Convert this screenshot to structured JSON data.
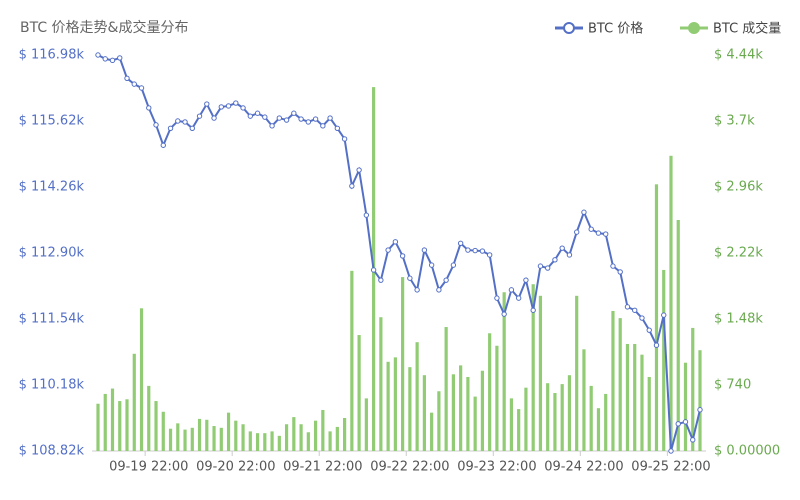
{
  "chart_data": {
    "type": "combo",
    "title": "BTC 价格走势&成交量分布",
    "legend": "top-right",
    "categories": [
      null,
      null,
      null,
      null,
      null,
      null,
      null,
      "09-19 22:00",
      null,
      null,
      null,
      null,
      null,
      null,
      null,
      null,
      null,
      null,
      null,
      "09-20 22:00",
      null,
      null,
      null,
      null,
      null,
      null,
      null,
      null,
      null,
      null,
      null,
      "09-21 22:00",
      null,
      null,
      null,
      null,
      null,
      null,
      null,
      null,
      null,
      null,
      null,
      "09-22 22:00",
      null,
      null,
      null,
      null,
      null,
      null,
      null,
      null,
      null,
      null,
      null,
      "09-23 22:00",
      null,
      null,
      null,
      null,
      null,
      null,
      null,
      null,
      null,
      null,
      null,
      "09-24 22:00",
      null,
      null,
      null,
      null,
      null,
      null,
      null,
      null,
      null,
      null,
      null,
      "09-25 22:00",
      null,
      null,
      null,
      null
    ],
    "ylim": [
      108820,
      116980
    ],
    "yticks": [
      {
        "value": 108820,
        "label": "$ 108.82k"
      },
      {
        "value": 110180,
        "label": "$ 110.18k"
      },
      {
        "value": 111540,
        "label": "$ 111.54k"
      },
      {
        "value": 112900,
        "label": "$ 112.90k"
      },
      {
        "value": 114260,
        "label": "$ 114.26k"
      },
      {
        "value": 115620,
        "label": "$ 115.62k"
      },
      {
        "value": 116980,
        "label": "$ 116.98k"
      }
    ],
    "y2lim": [
      0,
      4440
    ],
    "y2ticks": [
      {
        "value": 0,
        "label": "$ 0.00000"
      },
      {
        "value": 740,
        "label": "$ 740"
      },
      {
        "value": 1480,
        "label": "$ 1.48k"
      },
      {
        "value": 2220,
        "label": "$ 2.22k"
      },
      {
        "value": 2960,
        "label": "$ 2.96k"
      },
      {
        "value": 3700,
        "label": "$ 3.7k"
      },
      {
        "value": 4440,
        "label": "$ 4.44k"
      }
    ],
    "series": [
      {
        "name": "BTC 价格",
        "type": "line",
        "color": "#5470c6",
        "values": [
          116980,
          116900,
          116870,
          116920,
          116500,
          116380,
          116300,
          115890,
          115540,
          115120,
          115470,
          115620,
          115600,
          115470,
          115720,
          115970,
          115680,
          115910,
          115930,
          115990,
          115890,
          115720,
          115780,
          115700,
          115520,
          115680,
          115640,
          115780,
          115660,
          115600,
          115660,
          115520,
          115680,
          115470,
          115250,
          114280,
          114610,
          113680,
          112550,
          112340,
          112960,
          113130,
          112840,
          112380,
          112140,
          112960,
          112650,
          112140,
          112340,
          112650,
          113100,
          112960,
          112950,
          112940,
          112860,
          111970,
          111640,
          112140,
          111970,
          112340,
          111720,
          112630,
          112590,
          112760,
          113000,
          112860,
          113330,
          113740,
          113390,
          113310,
          113290,
          112630,
          112510,
          111790,
          111720,
          111560,
          111310,
          111000,
          111620,
          108820,
          109380,
          109420,
          109050,
          109670
        ]
      },
      {
        "name": "BTC 成交量",
        "type": "bar",
        "axis": "y2",
        "color": "#91cc75",
        "values": [
          530,
          640,
          700,
          560,
          580,
          1090,
          1600,
          730,
          560,
          440,
          250,
          310,
          240,
          260,
          360,
          350,
          280,
          260,
          430,
          340,
          300,
          220,
          200,
          200,
          220,
          170,
          300,
          380,
          300,
          210,
          340,
          460,
          220,
          270,
          370,
          2020,
          1300,
          590,
          4080,
          1500,
          1000,
          1050,
          1950,
          940,
          1220,
          850,
          430,
          670,
          1390,
          860,
          960,
          830,
          610,
          900,
          1320,
          1180,
          1780,
          590,
          470,
          710,
          1870,
          1740,
          760,
          650,
          750,
          850,
          1740,
          1140,
          730,
          480,
          640,
          1570,
          1490,
          1200,
          1200,
          1080,
          830,
          2990,
          2030,
          3310,
          2590,
          990,
          1380,
          1130
        ]
      }
    ]
  }
}
